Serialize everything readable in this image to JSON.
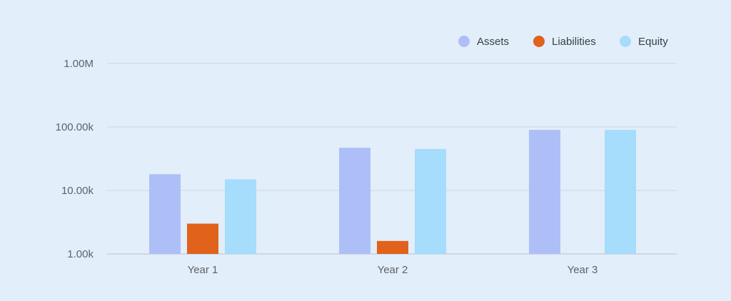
{
  "chart_data": {
    "type": "bar",
    "categories": [
      "Year 1",
      "Year 2",
      "Year 3"
    ],
    "series": [
      {
        "name": "Assets",
        "color": "#aebff7",
        "values": [
          18000,
          47000,
          90000
        ]
      },
      {
        "name": "Liabilities",
        "color": "#e0621b",
        "values": [
          3000,
          1600,
          0
        ]
      },
      {
        "name": "Equity",
        "color": "#a6dcfc",
        "values": [
          15000,
          45000,
          90000
        ]
      }
    ],
    "y_scale": "log",
    "ylim": [
      1000,
      1000000
    ],
    "y_ticks": [
      {
        "value": 1000000,
        "label": "1.00M"
      },
      {
        "value": 100000,
        "label": "100.00k"
      },
      {
        "value": 10000,
        "label": "10.00k"
      },
      {
        "value": 1000,
        "label": "1.00k"
      }
    ],
    "grid": true,
    "legend_position": "top-right"
  }
}
